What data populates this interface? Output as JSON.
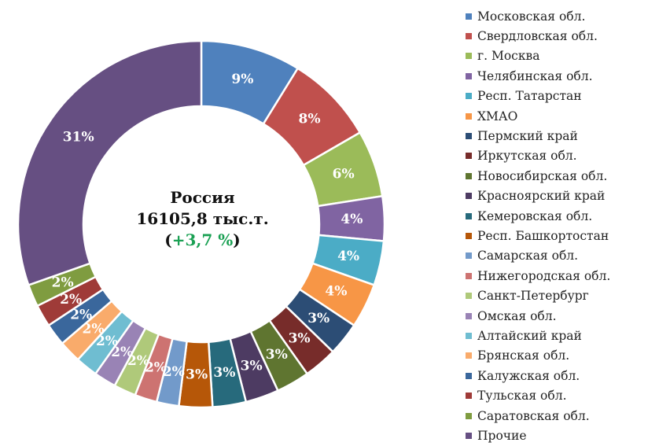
{
  "chart_data": {
    "type": "pie",
    "center": {
      "title": "Россия",
      "total": "16105,8 тыс.т.",
      "growth_open": "(",
      "growth_value": "+3,7 %",
      "growth_close": ")",
      "growth_color": "#1aa053"
    },
    "slices": [
      {
        "label": "Московская обл.",
        "percent": 9,
        "display": "9%",
        "color": "#4f81bd"
      },
      {
        "label": "Свердловская обл.",
        "percent": 8,
        "display": "8%",
        "color": "#c0504d"
      },
      {
        "label": "г. Москва",
        "percent": 6,
        "display": "6%",
        "color": "#9bbb59"
      },
      {
        "label": "Челябинская обл.",
        "percent": 4,
        "display": "4%",
        "color": "#8064a2"
      },
      {
        "label": "Респ. Татарстан",
        "percent": 4,
        "display": "4%",
        "color": "#4bacc6"
      },
      {
        "label": "ХМАО",
        "percent": 4,
        "display": "4%",
        "color": "#f79646"
      },
      {
        "label": "Пермский край",
        "percent": 3,
        "display": "3%",
        "color": "#2c4d75"
      },
      {
        "label": "Иркутская обл.",
        "percent": 3,
        "display": "3%",
        "color": "#772c2a"
      },
      {
        "label": "Новосибирская обл.",
        "percent": 3,
        "display": "3%",
        "color": "#5f7530"
      },
      {
        "label": "Красноярский край",
        "percent": 3,
        "display": "3%",
        "color": "#4d3b62"
      },
      {
        "label": "Кемеровская обл.",
        "percent": 3,
        "display": "3%",
        "color": "#276a7c"
      },
      {
        "label": "Респ. Башкортостан",
        "percent": 3,
        "display": "3%",
        "color": "#b65708"
      },
      {
        "label": "Самарская обл.",
        "percent": 2,
        "display": "2%",
        "color": "#729aca"
      },
      {
        "label": "Нижегородская обл.",
        "percent": 2,
        "display": "2%",
        "color": "#cd7371"
      },
      {
        "label": "Санкт-Петербург",
        "percent": 2,
        "display": "2%",
        "color": "#afc97a"
      },
      {
        "label": "Омская обл.",
        "percent": 2,
        "display": "2%",
        "color": "#9983b5"
      },
      {
        "label": "Алтайский край",
        "percent": 2,
        "display": "2%",
        "color": "#6fbdd1"
      },
      {
        "label": "Брянская обл.",
        "percent": 2,
        "display": "2%",
        "color": "#f9ab6b"
      },
      {
        "label": "Калужская обл.",
        "percent": 2,
        "display": "2%",
        "color": "#3a679c"
      },
      {
        "label": "Тульская обл.",
        "percent": 2,
        "display": "2%",
        "color": "#9f3b38"
      },
      {
        "label": "Саратовская обл.",
        "percent": 2,
        "display": "2%",
        "color": "#7f9c40"
      },
      {
        "label": "Прочие",
        "percent": 31,
        "display": "31%",
        "color": "#664f82"
      }
    ],
    "legend_position": "right"
  }
}
